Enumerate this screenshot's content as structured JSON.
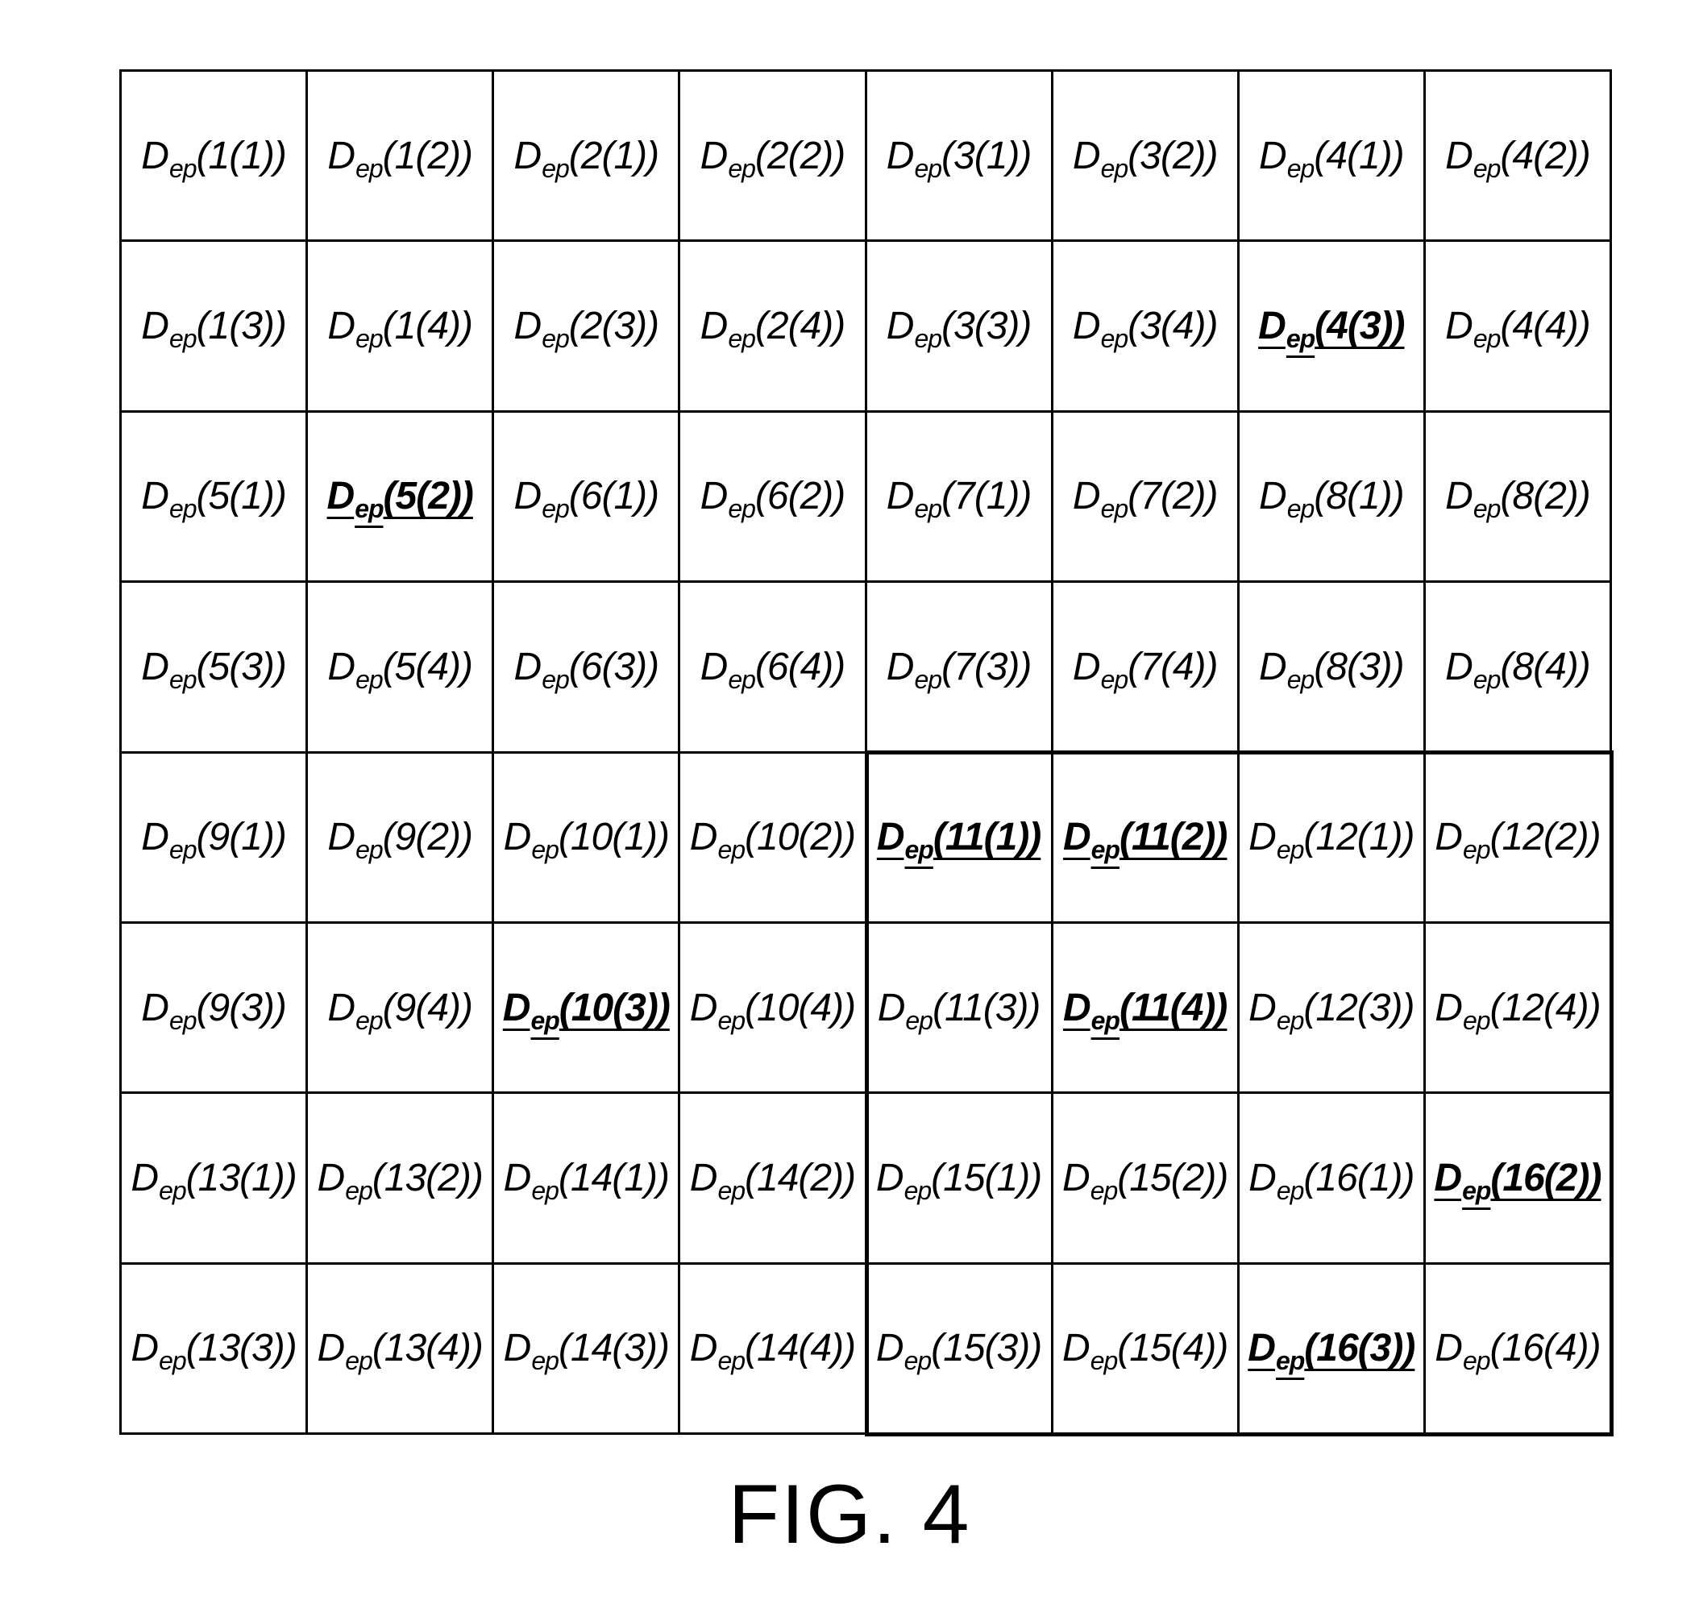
{
  "figure_label": "FIG. 4",
  "cell_symbol": "D",
  "cell_subscript": "ep",
  "grid": {
    "rows": [
      [
        {
          "arg": "(1(1))",
          "highlight": false
        },
        {
          "arg": "(1(2))",
          "highlight": false
        },
        {
          "arg": "(2(1))",
          "highlight": false
        },
        {
          "arg": "(2(2))",
          "highlight": false
        },
        {
          "arg": "(3(1))",
          "highlight": false
        },
        {
          "arg": "(3(2))",
          "highlight": false
        },
        {
          "arg": "(4(1))",
          "highlight": false
        },
        {
          "arg": "(4(2))",
          "highlight": false
        }
      ],
      [
        {
          "arg": "(1(3))",
          "highlight": false
        },
        {
          "arg": "(1(4))",
          "highlight": false
        },
        {
          "arg": "(2(3))",
          "highlight": false
        },
        {
          "arg": "(2(4))",
          "highlight": false
        },
        {
          "arg": "(3(3))",
          "highlight": false
        },
        {
          "arg": "(3(4))",
          "highlight": false
        },
        {
          "arg": "(4(3))",
          "highlight": true
        },
        {
          "arg": "(4(4))",
          "highlight": false
        }
      ],
      [
        {
          "arg": "(5(1))",
          "highlight": false
        },
        {
          "arg": "(5(2))",
          "highlight": true
        },
        {
          "arg": "(6(1))",
          "highlight": false
        },
        {
          "arg": "(6(2))",
          "highlight": false
        },
        {
          "arg": "(7(1))",
          "highlight": false
        },
        {
          "arg": "(7(2))",
          "highlight": false
        },
        {
          "arg": "(8(1))",
          "highlight": false
        },
        {
          "arg": "(8(2))",
          "highlight": false
        }
      ],
      [
        {
          "arg": "(5(3))",
          "highlight": false
        },
        {
          "arg": "(5(4))",
          "highlight": false
        },
        {
          "arg": "(6(3))",
          "highlight": false
        },
        {
          "arg": "(6(4))",
          "highlight": false
        },
        {
          "arg": "(7(3))",
          "highlight": false
        },
        {
          "arg": "(7(4))",
          "highlight": false
        },
        {
          "arg": "(8(3))",
          "highlight": false
        },
        {
          "arg": "(8(4))",
          "highlight": false
        }
      ],
      [
        {
          "arg": "(9(1))",
          "highlight": false
        },
        {
          "arg": "(9(2))",
          "highlight": false
        },
        {
          "arg": "(10(1))",
          "highlight": false
        },
        {
          "arg": "(10(2))",
          "highlight": false
        },
        {
          "arg": "(11(1))",
          "highlight": true
        },
        {
          "arg": "(11(2))",
          "highlight": true
        },
        {
          "arg": "(12(1))",
          "highlight": false
        },
        {
          "arg": "(12(2))",
          "highlight": false
        }
      ],
      [
        {
          "arg": "(9(3))",
          "highlight": false
        },
        {
          "arg": "(9(4))",
          "highlight": false
        },
        {
          "arg": "(10(3))",
          "highlight": true
        },
        {
          "arg": "(10(4))",
          "highlight": false
        },
        {
          "arg": "(11(3))",
          "highlight": false
        },
        {
          "arg": "(11(4))",
          "highlight": true
        },
        {
          "arg": "(12(3))",
          "highlight": false
        },
        {
          "arg": "(12(4))",
          "highlight": false
        }
      ],
      [
        {
          "arg": "(13(1))",
          "highlight": false
        },
        {
          "arg": "(13(2))",
          "highlight": false
        },
        {
          "arg": "(14(1))",
          "highlight": false
        },
        {
          "arg": "(14(2))",
          "highlight": false
        },
        {
          "arg": "(15(1))",
          "highlight": false
        },
        {
          "arg": "(15(2))",
          "highlight": false
        },
        {
          "arg": "(16(1))",
          "highlight": false
        },
        {
          "arg": "(16(2))",
          "highlight": true
        }
      ],
      [
        {
          "arg": "(13(3))",
          "highlight": false
        },
        {
          "arg": "(13(4))",
          "highlight": false
        },
        {
          "arg": "(14(3))",
          "highlight": false
        },
        {
          "arg": "(14(4))",
          "highlight": false
        },
        {
          "arg": "(15(3))",
          "highlight": false
        },
        {
          "arg": "(15(4))",
          "highlight": false
        },
        {
          "arg": "(16(3))",
          "highlight": true
        },
        {
          "arg": "(16(4))",
          "highlight": false
        }
      ]
    ]
  },
  "outlined_block": {
    "rows": [
      5,
      8
    ],
    "cols": [
      5,
      8
    ]
  }
}
